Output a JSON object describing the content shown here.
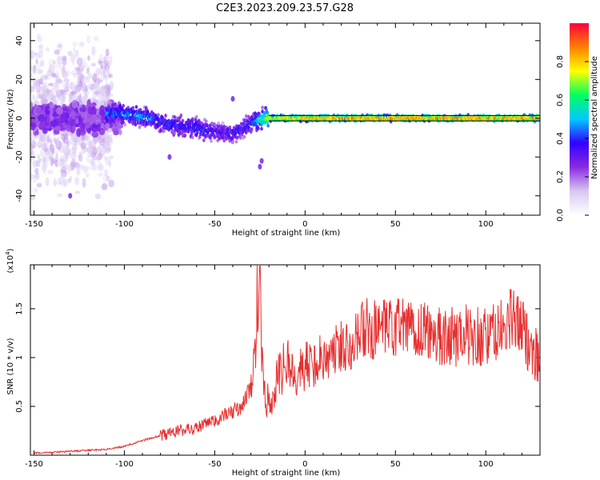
{
  "title": "C2E3.2023.209.23.57.G28",
  "chart_data": [
    {
      "type": "heatmap",
      "xlabel": "Height of straight line (km)",
      "ylabel": "Frequency (Hz)",
      "xlim": [
        -152,
        130
      ],
      "ylim": [
        -50,
        49
      ],
      "xticks": [
        -150,
        -100,
        -50,
        0,
        50,
        100
      ],
      "yticks": [
        -40,
        -20,
        0,
        20,
        40
      ],
      "colorbar": {
        "label": "Normalized spectral amplitude",
        "range": [
          0.0,
          1.0
        ],
        "ticks": [
          0.0,
          0.2,
          0.4,
          0.6,
          0.8
        ],
        "colors": [
          "#ffffff",
          "#d8c8f0",
          "#8a2be2",
          "#3300ff",
          "#00c8ff",
          "#00ff60",
          "#ffff00",
          "#ff8000",
          "#ff0040"
        ]
      },
      "ridge": {
        "x": [
          -110,
          -100,
          -90,
          -80,
          -70,
          -60,
          -50,
          -40,
          -30,
          -25,
          -20,
          -10,
          0,
          20,
          40,
          60,
          80,
          100,
          120,
          130
        ],
        "y": [
          3,
          2,
          1,
          -2,
          -4,
          -5,
          -7,
          -8,
          -3,
          -1,
          0,
          0,
          0,
          0,
          0,
          0,
          0,
          0,
          0,
          0
        ],
        "amplitude": [
          0.45,
          0.45,
          0.45,
          0.4,
          0.4,
          0.4,
          0.35,
          0.35,
          0.4,
          0.55,
          0.75,
          0.85,
          0.85,
          0.9,
          0.9,
          0.9,
          0.9,
          0.9,
          0.9,
          0.9
        ]
      }
    },
    {
      "type": "line",
      "xlabel": "Height of straight line (km)",
      "ylabel": "SNR (10 * v/v)",
      "y_multiplier": "(x10",
      "y_multiplier_exp": "4",
      "y_multiplier_close": ")",
      "xlim": [
        -152,
        130
      ],
      "ylim": [
        0,
        1.95
      ],
      "xticks": [
        -150,
        -100,
        -50,
        0,
        50,
        100
      ],
      "yticks": [
        0.5,
        1.0,
        1.5
      ],
      "color": "#e83030",
      "series": [
        {
          "x": [
            -150,
            -140,
            -130,
            -120,
            -110,
            -100,
            -90,
            -80,
            -70,
            -60,
            -50,
            -45,
            -40,
            -35,
            -30,
            -27,
            -25,
            -24,
            -22,
            -20,
            -15,
            -10,
            -5,
            0,
            10,
            20,
            30,
            35,
            40,
            50,
            60,
            70,
            80,
            90,
            100,
            110,
            115,
            120,
            125,
            130
          ],
          "y": [
            0.02,
            0.03,
            0.04,
            0.05,
            0.06,
            0.09,
            0.15,
            0.2,
            0.25,
            0.28,
            0.35,
            0.4,
            0.45,
            0.5,
            0.7,
            1.2,
            1.5,
            0.95,
            0.6,
            0.5,
            0.8,
            0.95,
            0.85,
            0.9,
            1.0,
            1.1,
            1.25,
            1.3,
            1.25,
            1.3,
            1.3,
            1.25,
            1.2,
            1.25,
            1.2,
            1.3,
            1.4,
            1.3,
            1.1,
            1.0
          ]
        }
      ]
    }
  ]
}
